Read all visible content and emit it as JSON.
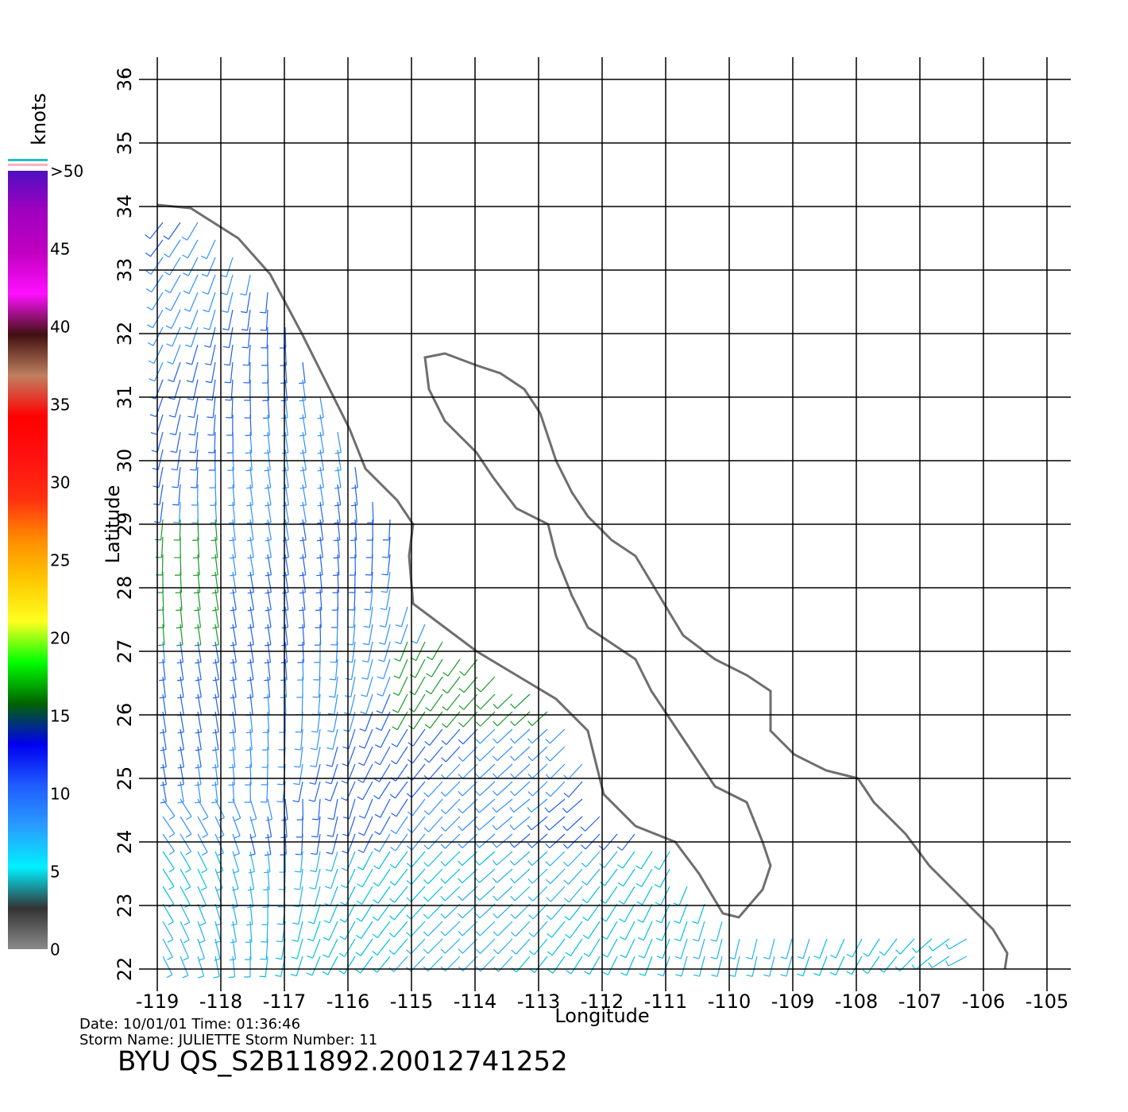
{
  "chart_data": {
    "type": "wind-map",
    "xlabel": "Longitude",
    "ylabel": "Latitude",
    "xlim": [
      -119,
      -105
    ],
    "ylim": [
      22,
      36
    ],
    "xticks": [
      -119,
      -118,
      -117,
      -116,
      -115,
      -114,
      -113,
      -112,
      -111,
      -110,
      -109,
      -108,
      -107,
      -106,
      -105
    ],
    "yticks": [
      22,
      23,
      24,
      25,
      26,
      27,
      28,
      29,
      30,
      31,
      32,
      33,
      34,
      35,
      36
    ],
    "grid": true,
    "colorbar": {
      "title": "knots",
      "lim": [
        0,
        50
      ],
      "ticks": [
        0,
        5,
        10,
        15,
        20,
        25,
        30,
        35,
        40,
        {
          "value": 45,
          "label": "45"
        },
        {
          "value": 50,
          "label": ">50"
        }
      ],
      "colors": [
        "#8a8a8a",
        "#333333",
        "#00f0ff",
        "#2a9cff",
        "#1f5cff",
        "#0000ee",
        "#006400",
        "#00ff00",
        "#ffff20",
        "#ffc800",
        "#ff8c00",
        "#ff3010",
        "#ff1010",
        "#ff0000",
        "#c08060",
        "#401010",
        "#ff10ff",
        "#c000c0",
        "#a000c0",
        "#5010c0"
      ]
    },
    "footer": [
      "Date: 10/01/01   Time: 01:36:46",
      "Storm  Name:  JULIETTE    Storm  Number:  11"
    ],
    "title": "BYU  QS_S2B11892.20012741252"
  }
}
